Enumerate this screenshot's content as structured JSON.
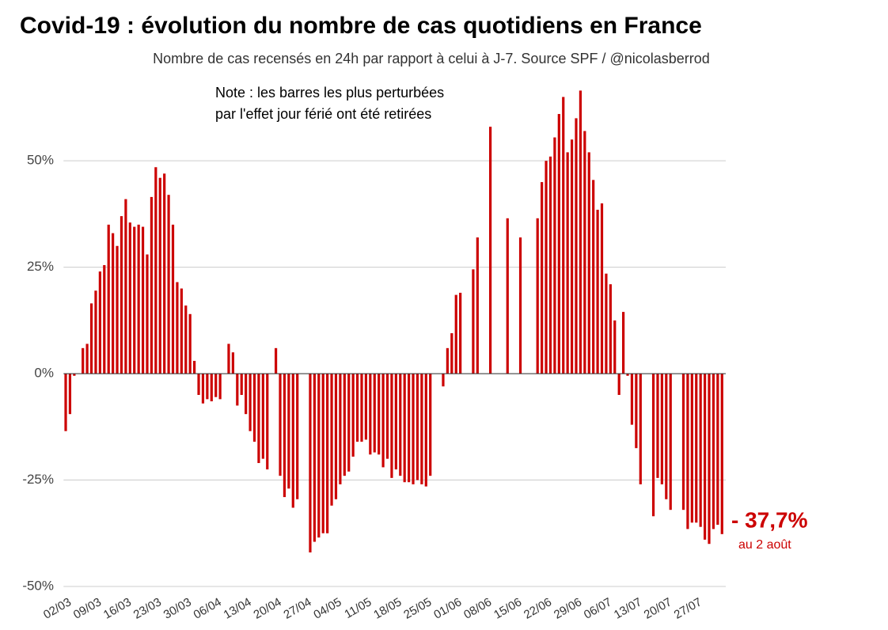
{
  "chart_data": {
    "type": "bar",
    "title": "Covid-19 : évolution du nombre de cas quotidiens en France",
    "subtitle": "Nombre de cas recensés en 24h par rapport à celui à J-7. Source SPF / @nicolasberrod",
    "note": [
      "Note : les barres les plus perturbées",
      "par l'effet jour férié ont été retirées"
    ],
    "annotation": "- 37,7%",
    "annotation_sub": "au 2 août",
    "color": "#cc0000",
    "grid": true,
    "ylim": [
      -50,
      69
    ],
    "yticks": [
      {
        "value": -50,
        "label": "-50%"
      },
      {
        "value": -25,
        "label": "-25%"
      },
      {
        "value": 0,
        "label": "0%"
      },
      {
        "value": 25,
        "label": "25%"
      },
      {
        "value": 50,
        "label": "50%"
      }
    ],
    "categories": [
      "02/03",
      null,
      null,
      null,
      null,
      null,
      null,
      "09/03",
      null,
      null,
      null,
      null,
      null,
      null,
      "16/03",
      null,
      null,
      null,
      null,
      null,
      null,
      "23/03",
      null,
      null,
      null,
      null,
      null,
      null,
      "30/03",
      null,
      null,
      null,
      null,
      null,
      null,
      "06/04",
      null,
      null,
      null,
      null,
      null,
      null,
      "13/04",
      null,
      null,
      null,
      null,
      null,
      null,
      "20/04",
      null,
      null,
      null,
      null,
      null,
      null,
      "27/04",
      null,
      null,
      null,
      null,
      null,
      null,
      "04/05",
      null,
      null,
      null,
      null,
      null,
      null,
      "11/05",
      null,
      null,
      null,
      null,
      null,
      null,
      "18/05",
      null,
      null,
      null,
      null,
      null,
      null,
      "25/05",
      null,
      null,
      null,
      null,
      null,
      null,
      "01/06",
      null,
      null,
      null,
      null,
      null,
      null,
      "08/06",
      null,
      null,
      null,
      null,
      null,
      null,
      "15/06",
      null,
      null,
      null,
      null,
      null,
      null,
      "22/06",
      null,
      null,
      null,
      null,
      null,
      null,
      "29/06",
      null,
      null,
      null,
      null,
      null,
      null,
      "06/07",
      null,
      null,
      null,
      null,
      null,
      null,
      "13/07",
      null,
      null,
      null,
      null,
      null,
      null,
      "20/07",
      null,
      null,
      null,
      null,
      null,
      null,
      "27/07",
      null,
      null,
      null,
      null,
      null,
      null
    ],
    "values": [
      -13.5,
      -9.5,
      -0.5,
      null,
      6,
      7,
      16.5,
      19.5,
      24,
      25.5,
      35,
      33,
      30,
      37,
      41,
      35.5,
      34.5,
      35,
      34.5,
      28,
      41.5,
      48.5,
      46,
      47,
      42,
      35,
      21.5,
      20,
      16,
      14,
      3,
      -5,
      -7,
      -6,
      -6.5,
      -5.5,
      -6,
      null,
      7,
      5,
      -7.5,
      -5,
      -9.5,
      -13.5,
      -16,
      -21,
      -20,
      -22.5,
      null,
      6,
      -24,
      -29,
      -27,
      -31.5,
      -29.5,
      null,
      null,
      -42,
      -39.5,
      -38.5,
      -37.5,
      -37.5,
      -31,
      -29.5,
      -26,
      -24,
      -23,
      -19.5,
      -16,
      -16,
      -15.5,
      -19,
      -18.5,
      -19,
      -22,
      -20,
      -24.5,
      -22.5,
      -24,
      -25.5,
      -25.5,
      -26,
      -25,
      -26,
      -26.5,
      -24,
      null,
      null,
      -3,
      6,
      9.5,
      18.5,
      19,
      null,
      null,
      24.5,
      32,
      null,
      null,
      58,
      null,
      null,
      null,
      36.5,
      null,
      null,
      32,
      null,
      null,
      null,
      36.5,
      45,
      50,
      51,
      55.5,
      61,
      65,
      52,
      55,
      60,
      66.5,
      57,
      52,
      45.5,
      38.5,
      40,
      23.5,
      21,
      12.5,
      -5,
      14.5,
      -0.5,
      -12,
      -17.5,
      -26,
      null,
      null,
      -33.5,
      -24.5,
      -26,
      -29.5,
      -32,
      null,
      null,
      -32,
      -36.5,
      -35,
      -35,
      -36,
      -39,
      -40,
      -36.5,
      -35.5,
      -37.7
    ]
  }
}
